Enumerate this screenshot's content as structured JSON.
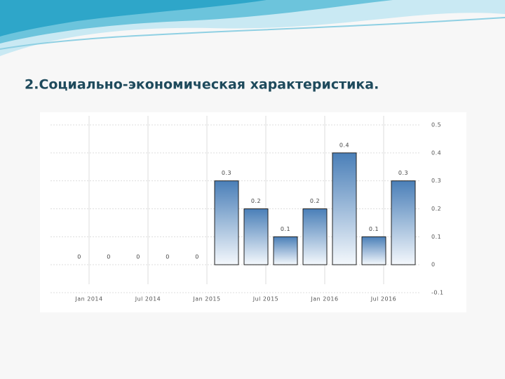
{
  "heading": "2.Социально-экономическая характеристика.",
  "chart_data": {
    "type": "bar",
    "categories": [
      "Jan 2014",
      null,
      "Jul 2014",
      null,
      "Jan 2015",
      null,
      "Jul 2015",
      null,
      "Jan 2016",
      null,
      "Jul 2016",
      null
    ],
    "values": [
      0,
      0,
      0,
      0,
      0,
      0.3,
      0.2,
      0.1,
      0.2,
      0.4,
      0.1,
      0.3
    ],
    "color": "#4a7fb8",
    "ylim": [
      -0.1,
      0.5
    ],
    "yticks": [
      -0.1,
      0,
      0.1,
      0.2,
      0.3,
      0.4,
      0.5
    ],
    "grid": true
  }
}
